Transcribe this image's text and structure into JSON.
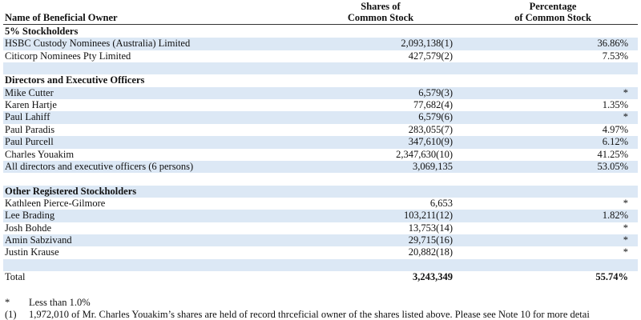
{
  "header": {
    "name": "Name of Beneficial Owner",
    "shares": [
      "Shares of",
      "Common Stock"
    ],
    "percent": [
      "Percentage",
      "of Common Stock"
    ]
  },
  "sections": [
    {
      "title": "5% Stockholders",
      "rows": [
        {
          "name": "HSBC Custody Nominees (Australia) Limited",
          "shares": "2,093,138(1)",
          "percent": "36.86%"
        },
        {
          "name": "Citicorp Nominees Pty Limited",
          "shares": "427,579(2)",
          "percent": "7.53%"
        }
      ]
    },
    {
      "title": "Directors and Executive Officers",
      "rows": [
        {
          "name": "Mike Cutter",
          "shares": "6,579(3)",
          "percent": "*"
        },
        {
          "name": "Karen Hartje",
          "shares": "77,682(4)",
          "percent": "1.35%"
        },
        {
          "name": "Paul Lahiff",
          "shares": "6,579(6)",
          "percent": "*"
        },
        {
          "name": "Paul Paradis",
          "shares": "283,055(7)",
          "percent": "4.97%"
        },
        {
          "name": "Paul Purcell",
          "shares": "347,610(9)",
          "percent": "6.12%"
        },
        {
          "name": "Charles Youakim",
          "shares": "2,347,630(10)",
          "percent": "41.25%"
        },
        {
          "name": "All directors and executive officers (6 persons)",
          "shares": "3,069,135",
          "percent": "53.05%"
        }
      ]
    },
    {
      "title": "Other Registered Stockholders",
      "rows": [
        {
          "name": "Kathleen Pierce-Gilmore",
          "shares": "6,653",
          "percent": "*"
        },
        {
          "name": "Lee Brading",
          "shares": "103,211(12)",
          "percent": "1.82%"
        },
        {
          "name": "Josh Bohde",
          "shares": "13,753(14)",
          "percent": "*"
        },
        {
          "name": "Amin Sabzivand",
          "shares": "29,715(16)",
          "percent": "*"
        },
        {
          "name": "Justin Krause",
          "shares": "20,882(18)",
          "percent": "*"
        }
      ]
    }
  ],
  "total": {
    "name": "Total",
    "shares": "3,243,349",
    "percent": "55.74%"
  },
  "footnotes": [
    {
      "mark": "*",
      "text": "Less than 1.0%"
    },
    {
      "mark": "(1)",
      "text": "1,972,010 of Mr. Charles Youakim’s shares are held of record thrceficial owner of the shares listed above. Please see Note 10 for more detai"
    }
  ]
}
